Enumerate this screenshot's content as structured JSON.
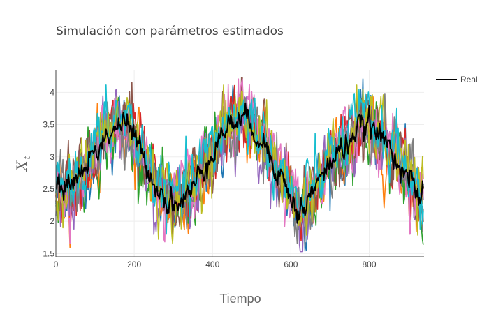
{
  "chart_data": {
    "type": "line",
    "title": "Simulación con parámetros estimados",
    "xlabel": "Tiempo",
    "ylabel": "X",
    "ylabel_subscript": "t",
    "xlim": [
      0,
      940
    ],
    "ylim": [
      1.45,
      4.35
    ],
    "x_ticks": [
      0,
      200,
      400,
      600,
      800
    ],
    "x_tick_labels": [
      "0",
      "200",
      "400",
      "600",
      "800"
    ],
    "y_ticks": [
      1.5,
      2,
      2.5,
      3,
      3.5,
      4
    ],
    "y_tick_labels": [
      "1.5",
      "2",
      "2.5",
      "3",
      "3.5",
      "4"
    ],
    "grid": true,
    "legend": {
      "placement": "top-right",
      "entries": [
        "Real"
      ]
    },
    "n_points": 940,
    "simulations": {
      "count": 10,
      "colors": [
        "#1f77b4",
        "#ff7f0e",
        "#2ca02c",
        "#d62728",
        "#9467bd",
        "#8c564b",
        "#e377c2",
        "#7f7f7f",
        "#bcbd22",
        "#17becf"
      ]
    },
    "series": [
      {
        "name": "Real",
        "color": "#000000",
        "x": [
          0,
          30,
          60,
          100,
          140,
          160,
          180,
          200,
          230,
          260,
          290,
          320,
          350,
          380,
          410,
          440,
          470,
          500,
          530,
          560,
          590,
          620,
          650,
          680,
          710,
          740,
          770,
          800,
          830,
          860,
          900,
          930,
          940
        ],
        "values": [
          2.4,
          2.6,
          2.7,
          3.1,
          3.4,
          3.5,
          3.5,
          3.3,
          2.9,
          2.5,
          2.3,
          2.3,
          2.5,
          2.9,
          3.2,
          3.5,
          3.6,
          3.5,
          3.2,
          2.9,
          2.5,
          2.1,
          2.4,
          2.7,
          3.0,
          3.2,
          3.4,
          3.5,
          3.3,
          3.1,
          2.7,
          2.3,
          2.4
        ]
      }
    ]
  }
}
